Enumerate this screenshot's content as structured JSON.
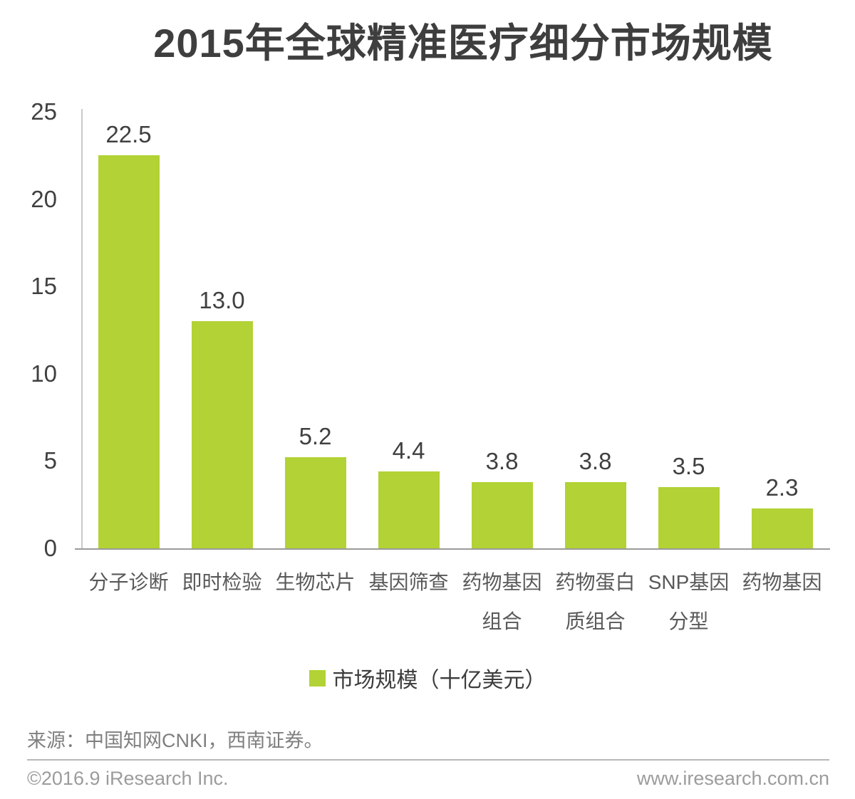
{
  "page": {
    "title": "2015年全球精准医疗细分市场规模",
    "source_note": "来源：中国知网CNKI，西南证券。",
    "footer": {
      "left": "©2016.9 iResearch Inc.",
      "right": "www.iresearch.com.cn"
    }
  },
  "legend": {
    "label": "市场规模（十亿美元）",
    "swatch_color": "#b2d235"
  },
  "chart_data": {
    "type": "bar",
    "title": "2015年全球精准医疗细分市场规模",
    "categories": [
      "分子诊断",
      "即时检验",
      "生物芯片",
      "基因筛查",
      "药物基因组合",
      "药物蛋白质组合",
      "SNP基因分型",
      "药物基因"
    ],
    "category_label_lines": [
      [
        "分子诊断"
      ],
      [
        "即时检验"
      ],
      [
        "生物芯片"
      ],
      [
        "基因筛查"
      ],
      [
        "药物基因",
        "组合"
      ],
      [
        "药物蛋白",
        "质组合"
      ],
      [
        "SNP基因",
        "分型"
      ],
      [
        "药物基因"
      ]
    ],
    "values": [
      22.5,
      13.0,
      5.2,
      4.4,
      3.8,
      3.8,
      3.5,
      2.3
    ],
    "value_labels": [
      "22.5",
      "13.0",
      "5.2",
      "4.4",
      "3.8",
      "3.8",
      "3.5",
      "2.3"
    ],
    "unit": "十亿美元",
    "xlabel": "",
    "ylabel": "",
    "ylim": [
      0,
      25
    ],
    "yticks": [
      0,
      5,
      10,
      15,
      20,
      25
    ],
    "grid": false,
    "legend": [
      {
        "label": "市场规模（十亿美元）",
        "color": "#b2d235"
      }
    ],
    "legend_position": "bottom",
    "bar_color": "#b2d235"
  },
  "colors": {
    "bar": "#b2d235",
    "title_text": "#3e3e3e",
    "axis_text": "#404040",
    "category_text": "#595959",
    "source_text": "#7f7f7f",
    "footer_text": "#9c9c9c",
    "axis_line_vertical": "#c9c9c9",
    "axis_line_baseline": "#9a9a9a",
    "footer_divider": "#b8b8b8"
  }
}
